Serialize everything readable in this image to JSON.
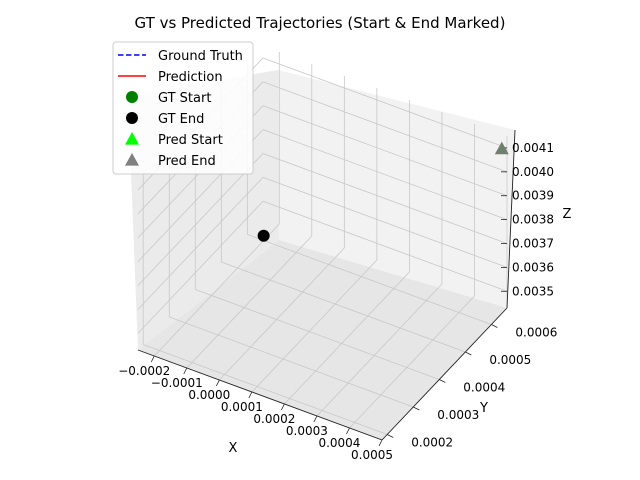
{
  "chart_data": {
    "type": "scatter",
    "projection": "3d",
    "title": "GT vs Predicted Trajectories (Start & End Marked)",
    "xlabel": "X",
    "ylabel": "Y",
    "zlabel": "Z",
    "xlim": [
      -0.00025,
      0.0005
    ],
    "ylim": [
      0.00018,
      0.00066
    ],
    "zlim": [
      0.00343,
      0.00415
    ],
    "x_ticks": [
      "−0.0002",
      "−0.0001",
      "0.0000",
      "0.0001",
      "0.0002",
      "0.0003",
      "0.0004",
      "0.0005"
    ],
    "y_ticks": [
      "0.0002",
      "0.0003",
      "0.0004",
      "0.0005",
      "0.0006"
    ],
    "z_ticks": [
      "0.0035",
      "0.0036",
      "0.0037",
      "0.0038",
      "0.0039",
      "0.0040",
      "0.0041"
    ],
    "grid": true,
    "legend_position": "top-left",
    "legend": [
      {
        "label": "Ground Truth",
        "kind": "line",
        "style": "dashed",
        "color": "#0000ff"
      },
      {
        "label": "Prediction",
        "kind": "line",
        "style": "solid",
        "color": "#ff0000"
      },
      {
        "label": "GT Start",
        "kind": "marker",
        "marker": "circle",
        "color": "#008000"
      },
      {
        "label": "GT End",
        "kind": "marker",
        "marker": "circle",
        "color": "#000000"
      },
      {
        "label": "Pred Start",
        "kind": "marker",
        "marker": "triangle",
        "color": "#00ff00"
      },
      {
        "label": "Pred End",
        "kind": "marker",
        "marker": "triangle",
        "color": "#808080"
      }
    ],
    "points": [
      {
        "name": "GT End",
        "marker": "circle",
        "color": "#000000",
        "x": -0.0002,
        "y": 0.0006,
        "z": 0.00345
      },
      {
        "name": "Pred End",
        "marker": "triangle",
        "color": "#6f806f",
        "x": 0.0005,
        "y": 0.00064,
        "z": 0.00412
      }
    ]
  }
}
